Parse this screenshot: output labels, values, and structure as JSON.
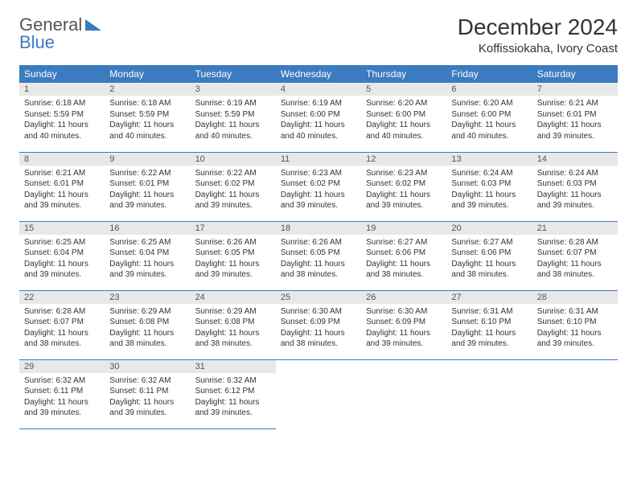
{
  "logo": {
    "text1": "General",
    "text2": "Blue"
  },
  "title": "December 2024",
  "location": "Koffissiokaha, Ivory Coast",
  "colors": {
    "header_bg": "#3b7bbf",
    "header_text": "#ffffff",
    "daynum_bg": "#e8e8e8",
    "border": "#3b7bbf",
    "logo_blue": "#3b7bbf"
  },
  "weekdays": [
    "Sunday",
    "Monday",
    "Tuesday",
    "Wednesday",
    "Thursday",
    "Friday",
    "Saturday"
  ],
  "days": [
    {
      "n": "1",
      "sunrise": "Sunrise: 6:18 AM",
      "sunset": "Sunset: 5:59 PM",
      "day1": "Daylight: 11 hours",
      "day2": "and 40 minutes."
    },
    {
      "n": "2",
      "sunrise": "Sunrise: 6:18 AM",
      "sunset": "Sunset: 5:59 PM",
      "day1": "Daylight: 11 hours",
      "day2": "and 40 minutes."
    },
    {
      "n": "3",
      "sunrise": "Sunrise: 6:19 AM",
      "sunset": "Sunset: 5:59 PM",
      "day1": "Daylight: 11 hours",
      "day2": "and 40 minutes."
    },
    {
      "n": "4",
      "sunrise": "Sunrise: 6:19 AM",
      "sunset": "Sunset: 6:00 PM",
      "day1": "Daylight: 11 hours",
      "day2": "and 40 minutes."
    },
    {
      "n": "5",
      "sunrise": "Sunrise: 6:20 AM",
      "sunset": "Sunset: 6:00 PM",
      "day1": "Daylight: 11 hours",
      "day2": "and 40 minutes."
    },
    {
      "n": "6",
      "sunrise": "Sunrise: 6:20 AM",
      "sunset": "Sunset: 6:00 PM",
      "day1": "Daylight: 11 hours",
      "day2": "and 40 minutes."
    },
    {
      "n": "7",
      "sunrise": "Sunrise: 6:21 AM",
      "sunset": "Sunset: 6:01 PM",
      "day1": "Daylight: 11 hours",
      "day2": "and 39 minutes."
    },
    {
      "n": "8",
      "sunrise": "Sunrise: 6:21 AM",
      "sunset": "Sunset: 6:01 PM",
      "day1": "Daylight: 11 hours",
      "day2": "and 39 minutes."
    },
    {
      "n": "9",
      "sunrise": "Sunrise: 6:22 AM",
      "sunset": "Sunset: 6:01 PM",
      "day1": "Daylight: 11 hours",
      "day2": "and 39 minutes."
    },
    {
      "n": "10",
      "sunrise": "Sunrise: 6:22 AM",
      "sunset": "Sunset: 6:02 PM",
      "day1": "Daylight: 11 hours",
      "day2": "and 39 minutes."
    },
    {
      "n": "11",
      "sunrise": "Sunrise: 6:23 AM",
      "sunset": "Sunset: 6:02 PM",
      "day1": "Daylight: 11 hours",
      "day2": "and 39 minutes."
    },
    {
      "n": "12",
      "sunrise": "Sunrise: 6:23 AM",
      "sunset": "Sunset: 6:02 PM",
      "day1": "Daylight: 11 hours",
      "day2": "and 39 minutes."
    },
    {
      "n": "13",
      "sunrise": "Sunrise: 6:24 AM",
      "sunset": "Sunset: 6:03 PM",
      "day1": "Daylight: 11 hours",
      "day2": "and 39 minutes."
    },
    {
      "n": "14",
      "sunrise": "Sunrise: 6:24 AM",
      "sunset": "Sunset: 6:03 PM",
      "day1": "Daylight: 11 hours",
      "day2": "and 39 minutes."
    },
    {
      "n": "15",
      "sunrise": "Sunrise: 6:25 AM",
      "sunset": "Sunset: 6:04 PM",
      "day1": "Daylight: 11 hours",
      "day2": "and 39 minutes."
    },
    {
      "n": "16",
      "sunrise": "Sunrise: 6:25 AM",
      "sunset": "Sunset: 6:04 PM",
      "day1": "Daylight: 11 hours",
      "day2": "and 39 minutes."
    },
    {
      "n": "17",
      "sunrise": "Sunrise: 6:26 AM",
      "sunset": "Sunset: 6:05 PM",
      "day1": "Daylight: 11 hours",
      "day2": "and 39 minutes."
    },
    {
      "n": "18",
      "sunrise": "Sunrise: 6:26 AM",
      "sunset": "Sunset: 6:05 PM",
      "day1": "Daylight: 11 hours",
      "day2": "and 38 minutes."
    },
    {
      "n": "19",
      "sunrise": "Sunrise: 6:27 AM",
      "sunset": "Sunset: 6:06 PM",
      "day1": "Daylight: 11 hours",
      "day2": "and 38 minutes."
    },
    {
      "n": "20",
      "sunrise": "Sunrise: 6:27 AM",
      "sunset": "Sunset: 6:06 PM",
      "day1": "Daylight: 11 hours",
      "day2": "and 38 minutes."
    },
    {
      "n": "21",
      "sunrise": "Sunrise: 6:28 AM",
      "sunset": "Sunset: 6:07 PM",
      "day1": "Daylight: 11 hours",
      "day2": "and 38 minutes."
    },
    {
      "n": "22",
      "sunrise": "Sunrise: 6:28 AM",
      "sunset": "Sunset: 6:07 PM",
      "day1": "Daylight: 11 hours",
      "day2": "and 38 minutes."
    },
    {
      "n": "23",
      "sunrise": "Sunrise: 6:29 AM",
      "sunset": "Sunset: 6:08 PM",
      "day1": "Daylight: 11 hours",
      "day2": "and 38 minutes."
    },
    {
      "n": "24",
      "sunrise": "Sunrise: 6:29 AM",
      "sunset": "Sunset: 6:08 PM",
      "day1": "Daylight: 11 hours",
      "day2": "and 38 minutes."
    },
    {
      "n": "25",
      "sunrise": "Sunrise: 6:30 AM",
      "sunset": "Sunset: 6:09 PM",
      "day1": "Daylight: 11 hours",
      "day2": "and 38 minutes."
    },
    {
      "n": "26",
      "sunrise": "Sunrise: 6:30 AM",
      "sunset": "Sunset: 6:09 PM",
      "day1": "Daylight: 11 hours",
      "day2": "and 39 minutes."
    },
    {
      "n": "27",
      "sunrise": "Sunrise: 6:31 AM",
      "sunset": "Sunset: 6:10 PM",
      "day1": "Daylight: 11 hours",
      "day2": "and 39 minutes."
    },
    {
      "n": "28",
      "sunrise": "Sunrise: 6:31 AM",
      "sunset": "Sunset: 6:10 PM",
      "day1": "Daylight: 11 hours",
      "day2": "and 39 minutes."
    },
    {
      "n": "29",
      "sunrise": "Sunrise: 6:32 AM",
      "sunset": "Sunset: 6:11 PM",
      "day1": "Daylight: 11 hours",
      "day2": "and 39 minutes."
    },
    {
      "n": "30",
      "sunrise": "Sunrise: 6:32 AM",
      "sunset": "Sunset: 6:11 PM",
      "day1": "Daylight: 11 hours",
      "day2": "and 39 minutes."
    },
    {
      "n": "31",
      "sunrise": "Sunrise: 6:32 AM",
      "sunset": "Sunset: 6:12 PM",
      "day1": "Daylight: 11 hours",
      "day2": "and 39 minutes."
    }
  ]
}
